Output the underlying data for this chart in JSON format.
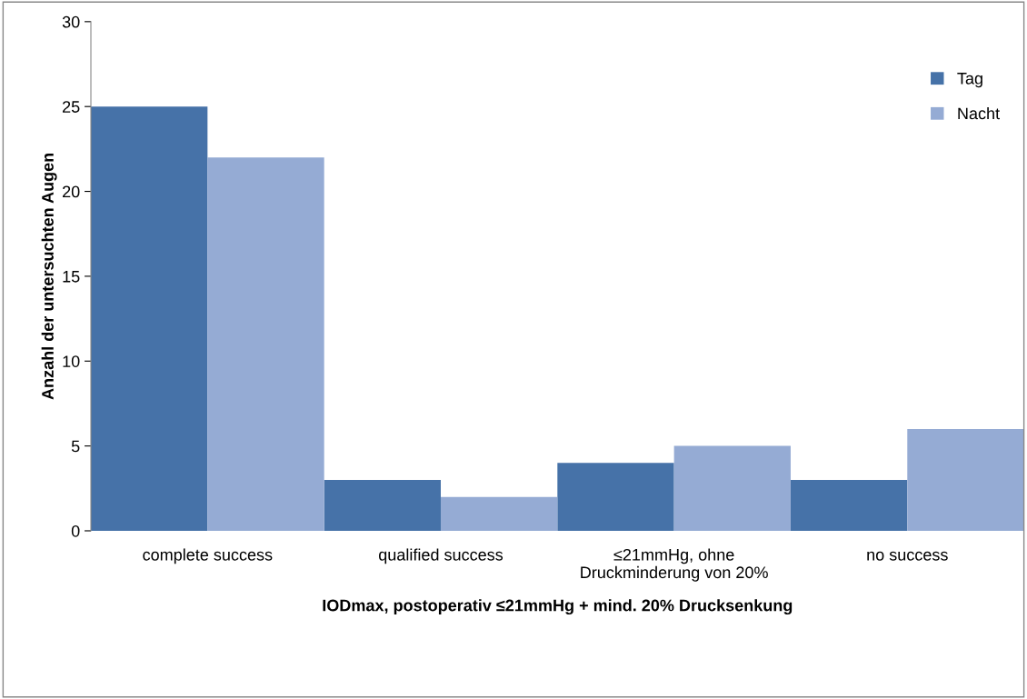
{
  "chart_data": {
    "type": "bar",
    "xlabel": "IODmax, postoperativ ≤21mmHg + mind. 20% Drucksenkung",
    "ylabel": "Anzahl der untersuchten Augen",
    "categories": [
      "complete success",
      "qualified success",
      "≤21mmHg, ohne\nDruckminderung von 20%",
      "no success"
    ],
    "series": [
      {
        "name": "Tag",
        "color": "#4672a8",
        "values": [
          25,
          3,
          4,
          3
        ]
      },
      {
        "name": "Nacht",
        "color": "#95abd4",
        "values": [
          22,
          2,
          5,
          6
        ]
      }
    ],
    "ylim": [
      0,
      30
    ],
    "yticks": [
      0,
      5,
      10,
      15,
      20,
      25,
      30
    ],
    "grid": false,
    "legend": "top right"
  }
}
